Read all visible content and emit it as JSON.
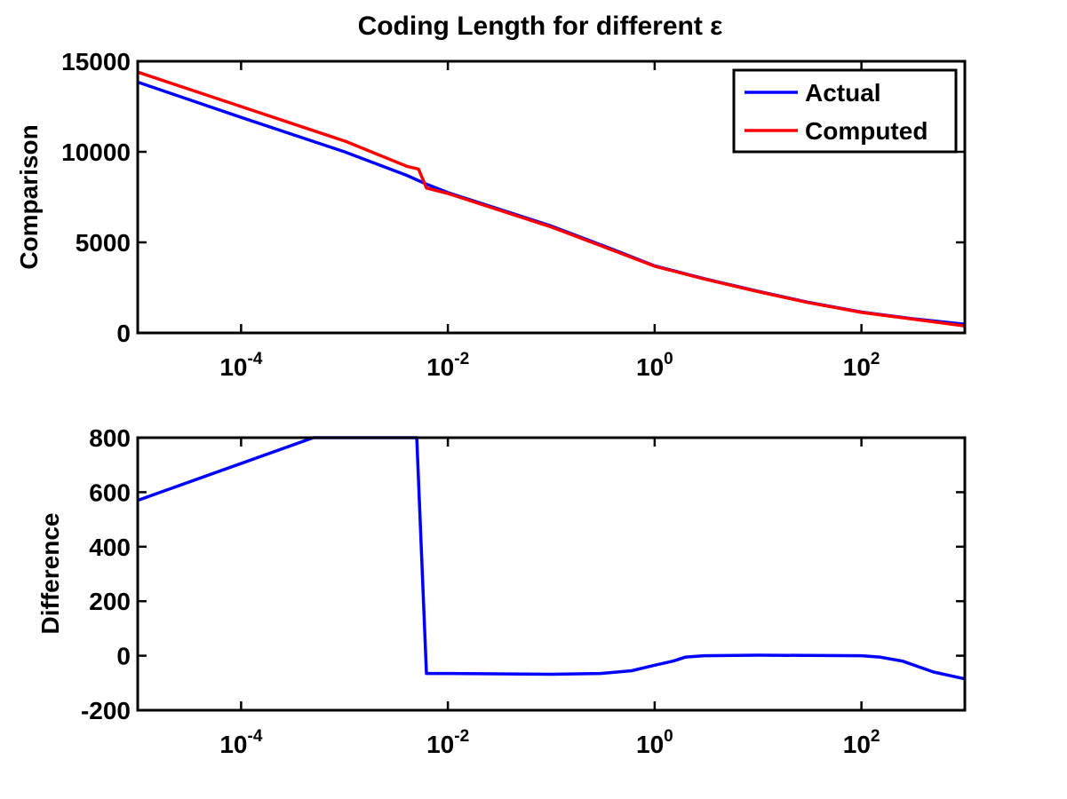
{
  "figure": {
    "title": "Coding Length for different ε"
  },
  "colors": {
    "actual": "#0000ff",
    "computed": "#ff0000",
    "axes": "#000000",
    "background": "#ffffff"
  },
  "chart_data": [
    {
      "type": "line",
      "title": "Coding Length for different ε",
      "xlabel": "",
      "ylabel": "Comparison",
      "xscale": "log",
      "xlim": [
        1e-05,
        1000
      ],
      "ylim": [
        0,
        15000
      ],
      "grid": false,
      "legend": "top-right",
      "xticks": [
        {
          "value": 0.0001,
          "base": "10",
          "exp": "-4"
        },
        {
          "value": 0.01,
          "base": "10",
          "exp": "-2"
        },
        {
          "value": 1,
          "base": "10",
          "exp": "0"
        },
        {
          "value": 100,
          "base": "10",
          "exp": "2"
        }
      ],
      "yticks": [
        {
          "value": 0,
          "label": "0"
        },
        {
          "value": 5000,
          "label": "5000"
        },
        {
          "value": 10000,
          "label": "10000"
        },
        {
          "value": 15000,
          "label": "15000"
        }
      ],
      "series": [
        {
          "name": "Actual",
          "color": "#0000ff",
          "points": [
            [
              1e-05,
              13850
            ],
            [
              0.0001,
              11900
            ],
            [
              0.001,
              10000
            ],
            [
              0.004,
              8700
            ],
            [
              0.006,
              8250
            ],
            [
              0.01,
              7750
            ],
            [
              0.1,
              5900
            ],
            [
              0.4,
              4600
            ],
            [
              1,
              3700
            ],
            [
              3,
              3000
            ],
            [
              10,
              2300
            ],
            [
              30,
              1700
            ],
            [
              100,
              1150
            ],
            [
              300,
              800
            ],
            [
              1000,
              480
            ]
          ]
        },
        {
          "name": "Computed",
          "color": "#ff0000",
          "points": [
            [
              1e-05,
              14400
            ],
            [
              0.0001,
              12500
            ],
            [
              0.001,
              10600
            ],
            [
              0.004,
              9200
            ],
            [
              0.0052,
              9050
            ],
            [
              0.0062,
              8000
            ],
            [
              0.01,
              7700
            ],
            [
              0.1,
              5850
            ],
            [
              0.4,
              4550
            ],
            [
              1,
              3680
            ],
            [
              3,
              2980
            ],
            [
              10,
              2280
            ],
            [
              30,
              1680
            ],
            [
              100,
              1130
            ],
            [
              300,
              780
            ],
            [
              1000,
              380
            ]
          ]
        }
      ]
    },
    {
      "type": "line",
      "title": "",
      "xlabel": "",
      "ylabel": "Difference",
      "xscale": "log",
      "xlim": [
        1e-05,
        1000
      ],
      "ylim": [
        -200,
        800
      ],
      "grid": false,
      "xticks": [
        {
          "value": 0.0001,
          "base": "10",
          "exp": "-4"
        },
        {
          "value": 0.01,
          "base": "10",
          "exp": "-2"
        },
        {
          "value": 1,
          "base": "10",
          "exp": "0"
        },
        {
          "value": 100,
          "base": "10",
          "exp": "2"
        }
      ],
      "yticks": [
        {
          "value": -200,
          "label": "-200"
        },
        {
          "value": 0,
          "label": "0"
        },
        {
          "value": 200,
          "label": "200"
        },
        {
          "value": 400,
          "label": "400"
        },
        {
          "value": 600,
          "label": "600"
        },
        {
          "value": 800,
          "label": "800"
        }
      ],
      "series": [
        {
          "name": "",
          "color": "#0000ff",
          "points": [
            [
              1e-05,
              570
            ],
            [
              0.0005,
              800
            ],
            [
              0.005,
              800
            ],
            [
              0.0062,
              -65
            ],
            [
              0.01,
              -65
            ],
            [
              0.1,
              -68
            ],
            [
              0.3,
              -65
            ],
            [
              0.6,
              -55
            ],
            [
              1,
              -35
            ],
            [
              1.5,
              -20
            ],
            [
              2,
              -5
            ],
            [
              3,
              0
            ],
            [
              10,
              2
            ],
            [
              100,
              0
            ],
            [
              150,
              -5
            ],
            [
              250,
              -20
            ],
            [
              500,
              -60
            ],
            [
              1000,
              -85
            ]
          ]
        }
      ]
    }
  ]
}
